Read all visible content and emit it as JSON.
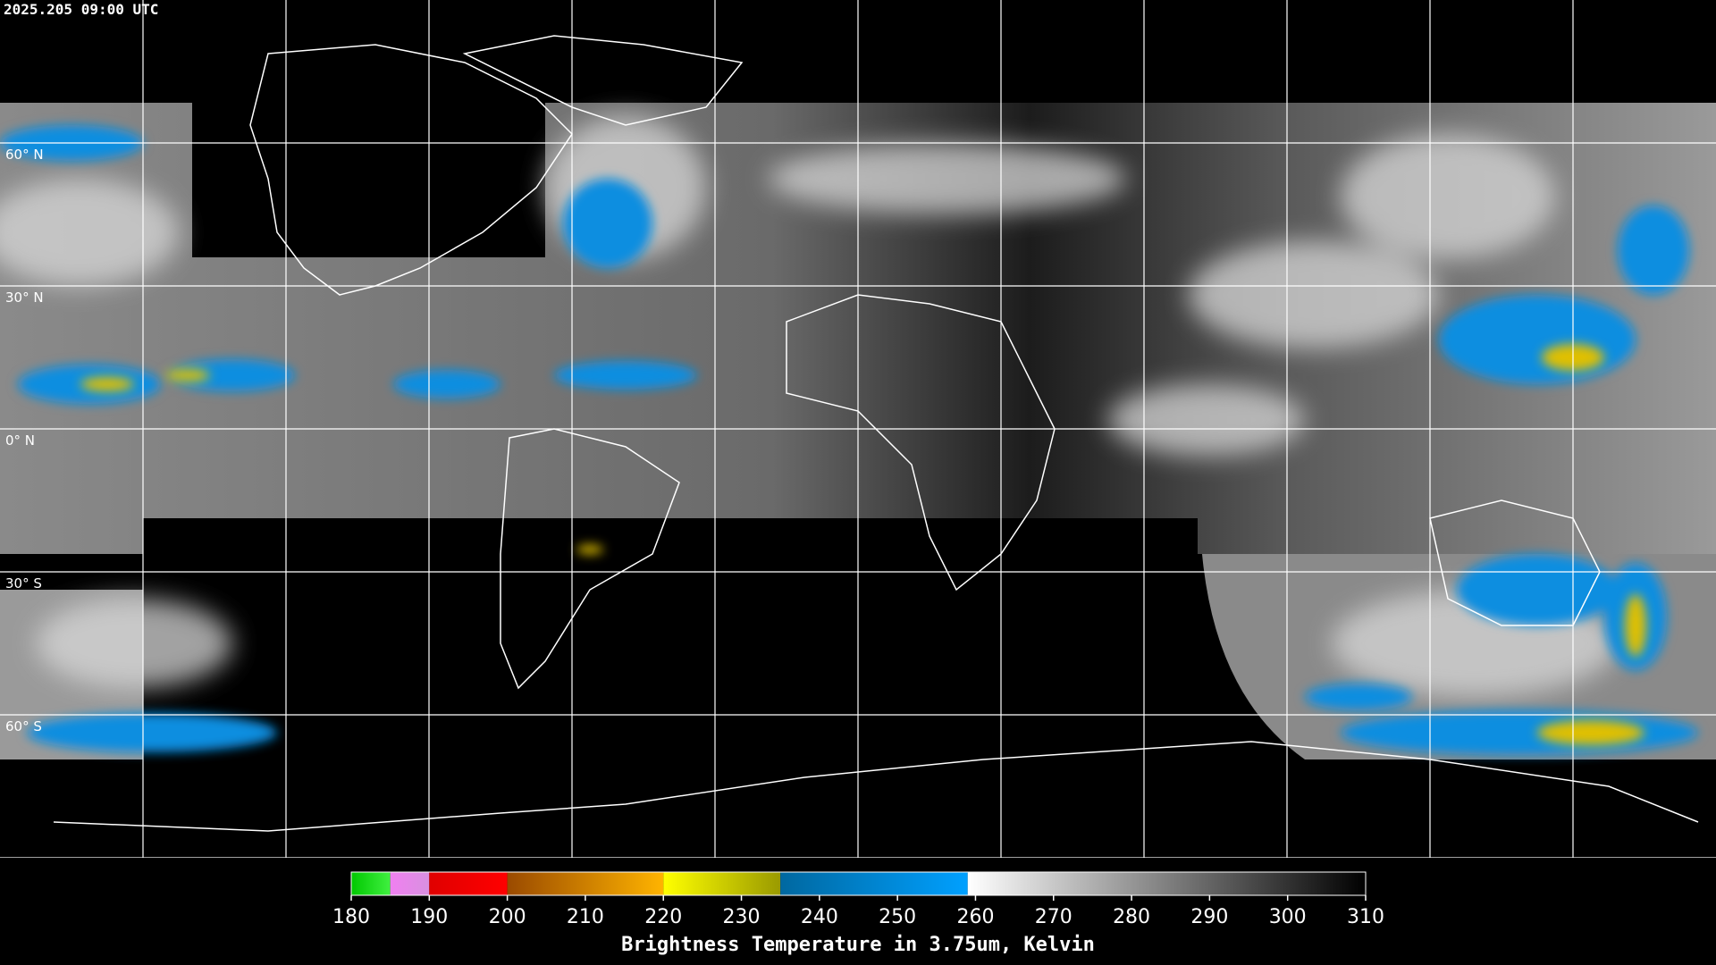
{
  "header": {
    "timestamp": "2025.205 09:00 UTC"
  },
  "map": {
    "lat_ticks": [
      {
        "value": 60,
        "label": "60° N"
      },
      {
        "value": 30,
        "label": "30° N"
      },
      {
        "value": 0,
        "label": "0° N"
      },
      {
        "value": -30,
        "label": "30° S"
      },
      {
        "value": -60,
        "label": "60° S"
      }
    ],
    "lat_range": [
      90,
      -90
    ]
  },
  "colorbar": {
    "range": [
      180,
      310
    ],
    "ticks": [
      180,
      190,
      200,
      210,
      220,
      230,
      240,
      250,
      260,
      270,
      280,
      290,
      300,
      310
    ],
    "title": "Brightness Temperature in 3.75um, Kelvin",
    "segments": [
      {
        "from": 180,
        "to": 185,
        "colors": [
          "#00c800",
          "#40f040"
        ]
      },
      {
        "from": 185,
        "to": 190,
        "colors": [
          "#f080f0",
          "#d890e0"
        ]
      },
      {
        "from": 190,
        "to": 200,
        "colors": [
          "#e00000",
          "#ff0000"
        ]
      },
      {
        "from": 200,
        "to": 220,
        "colors": [
          "#9a4a00",
          "#ffb400"
        ]
      },
      {
        "from": 220,
        "to": 235,
        "colors": [
          "#ffff00",
          "#9a9a00"
        ]
      },
      {
        "from": 235,
        "to": 259,
        "colors": [
          "#0068a0",
          "#00a0ff"
        ]
      },
      {
        "from": 259,
        "to": 310,
        "colors": [
          "#ffffff",
          "#000000"
        ]
      }
    ]
  }
}
